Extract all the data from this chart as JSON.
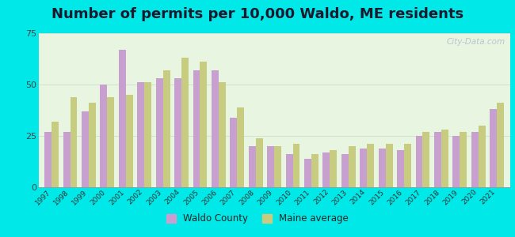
{
  "title": "Number of permits per 10,000 Waldo, ME residents",
  "years": [
    1997,
    1998,
    1999,
    2000,
    2001,
    2002,
    2003,
    2004,
    2005,
    2006,
    2007,
    2008,
    2009,
    2010,
    2011,
    2012,
    2013,
    2014,
    2015,
    2016,
    2017,
    2018,
    2019,
    2020,
    2021
  ],
  "waldo_county": [
    27,
    27,
    37,
    50,
    67,
    51,
    53,
    53,
    57,
    57,
    34,
    20,
    20,
    16,
    14,
    17,
    16,
    19,
    19,
    18,
    25,
    27,
    25,
    27,
    38
  ],
  "maine_avg": [
    32,
    44,
    41,
    44,
    45,
    51,
    57,
    63,
    61,
    51,
    39,
    24,
    20,
    21,
    16,
    18,
    20,
    21,
    21,
    21,
    27,
    28,
    27,
    30,
    41
  ],
  "waldo_color": "#c8a0d0",
  "maine_color": "#c8cc80",
  "outer_background": "#00e8e8",
  "ylim": [
    0,
    75
  ],
  "yticks": [
    0,
    25,
    50,
    75
  ],
  "title_fontsize": 13,
  "legend_labels": [
    "Waldo County",
    "Maine average"
  ],
  "bar_width": 0.38,
  "watermark": "City-Data.com"
}
